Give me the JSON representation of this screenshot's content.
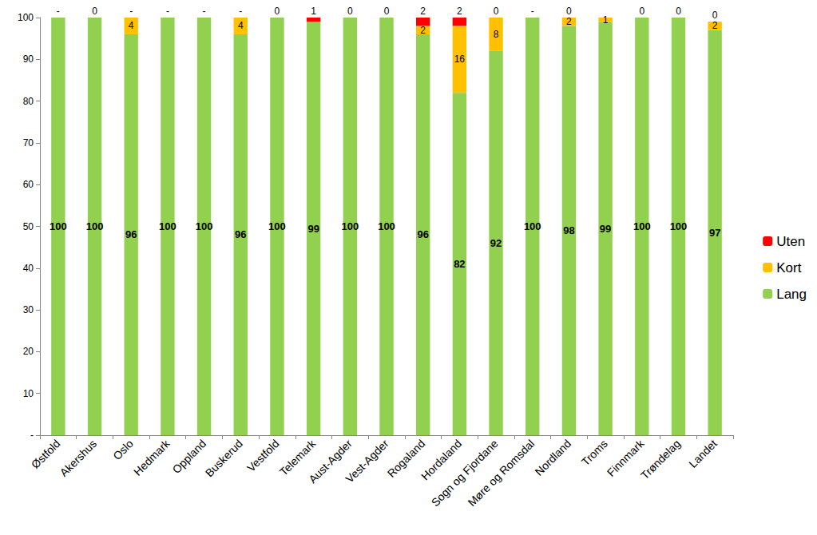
{
  "chart_data": {
    "type": "bar",
    "stacked": true,
    "data_labels": true,
    "grid": false,
    "legend": "right",
    "categories": [
      "Østfold",
      "Akershus",
      "Oslo",
      "Hedmark",
      "Oppland",
      "Buskerud",
      "Vestfold",
      "Telemark",
      "Aust-Agder",
      "Vest-Agder",
      "Rogaland",
      "Hordaland",
      "Sogn og Fjordane",
      "Møre og Romsdal",
      "Nordland",
      "Troms",
      "Finnmark",
      "Trøndelag",
      "Landet"
    ],
    "ylim": [
      0,
      100
    ],
    "yticks": [
      {
        "value": 0,
        "label": "-"
      },
      10,
      20,
      30,
      40,
      50,
      60,
      70,
      80,
      90,
      100
    ],
    "series": [
      {
        "name": "Lang",
        "color": "#92d050",
        "values": [
          100,
          100,
          96,
          100,
          100,
          96,
          100,
          99,
          100,
          100,
          96,
          82,
          92,
          100,
          98,
          99,
          100,
          100,
          97
        ]
      },
      {
        "name": "Kort",
        "color": "#ffc000",
        "values": [
          null,
          null,
          4,
          null,
          null,
          4,
          null,
          null,
          null,
          null,
          2,
          16,
          8,
          null,
          2,
          1,
          null,
          null,
          2
        ]
      },
      {
        "name": "Uten",
        "color": "#ff0000",
        "values": [
          0,
          0,
          0,
          0,
          0,
          0,
          0,
          1,
          0,
          0,
          2,
          2,
          0,
          0,
          0,
          null,
          0,
          0,
          0
        ],
        "value_labels": [
          "-",
          "0",
          "-",
          "-",
          "-",
          "-",
          "0",
          "1",
          "0",
          "0",
          "2",
          "2",
          "0",
          "-",
          "0",
          null,
          "0",
          "0",
          "0"
        ]
      }
    ]
  }
}
